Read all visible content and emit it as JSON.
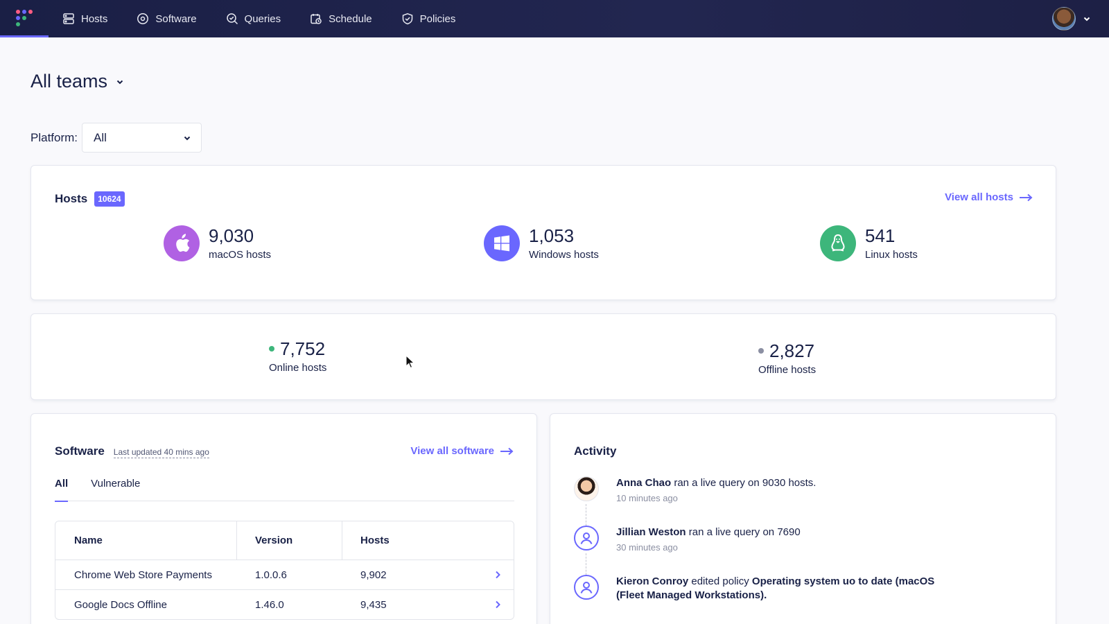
{
  "nav": {
    "items": [
      {
        "label": "Hosts",
        "icon": "hosts-icon"
      },
      {
        "label": "Software",
        "icon": "software-icon"
      },
      {
        "label": "Queries",
        "icon": "queries-icon"
      },
      {
        "label": "Schedule",
        "icon": "schedule-icon"
      },
      {
        "label": "Policies",
        "icon": "policies-icon"
      }
    ],
    "logo_colors": [
      "#ff5c83",
      "#6a67fe",
      "#3db67b"
    ]
  },
  "header": {
    "team": "All teams",
    "platform_label": "Platform:",
    "platform_value": "All"
  },
  "hosts_summary": {
    "title": "Hosts",
    "total": "10624",
    "view_all": "View all hosts",
    "platforms": [
      {
        "count": "9,030",
        "label": "macOS hosts",
        "color": "#ae62e6",
        "icon": "apple-icon"
      },
      {
        "count": "1,053",
        "label": "Windows hosts",
        "color": "#6a67fe",
        "icon": "windows-icon"
      },
      {
        "count": "541",
        "label": "Linux hosts",
        "color": "#3db67b",
        "icon": "linux-icon"
      }
    ]
  },
  "status": {
    "online": {
      "count": "7,752",
      "label": "Online hosts",
      "color": "#3db67b"
    },
    "offline": {
      "count": "2,827",
      "label": "Offline hosts",
      "color": "#8b8fa2"
    }
  },
  "software": {
    "title": "Software",
    "updated": "Last updated 40 mins ago",
    "view_all": "View all software",
    "tabs": [
      "All",
      "Vulnerable"
    ],
    "columns": [
      "Name",
      "Version",
      "Hosts"
    ],
    "rows": [
      {
        "name": "Chrome Web Store Payments",
        "version": "1.0.0.6",
        "hosts": "9,902"
      },
      {
        "name": "Google Docs Offline",
        "version": "1.46.0",
        "hosts": "9,435"
      }
    ]
  },
  "activity": {
    "title": "Activity",
    "items": [
      {
        "actor": "Anna Chao",
        "action": " ran a live query on 9030 hosts.",
        "time": "10 minutes ago"
      },
      {
        "actor": "Jillian Weston",
        "action": " ran a live query on 7690",
        "time": "30 minutes ago"
      },
      {
        "actor": "Kieron Conroy",
        "action": " edited policy ",
        "target": "Operating system uo to date (macOS (Fleet Managed Workstations)."
      }
    ]
  },
  "colors": {
    "accent": "#6a67fe",
    "nav_bg": "#1a1f45",
    "text": "#192147"
  }
}
